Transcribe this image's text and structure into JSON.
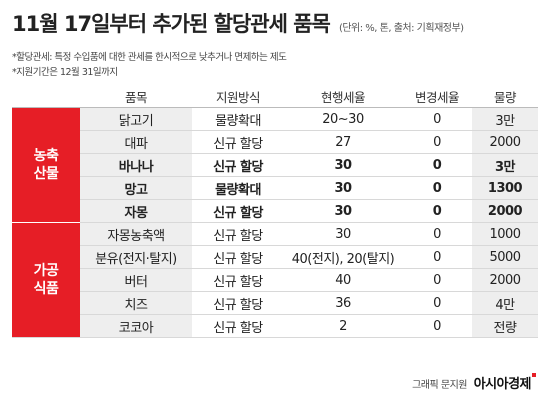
{
  "title": "11월 17일부터 추가된 할당관세 품목",
  "unit_note": "(단위: %, 톤, 출처: 기획재정부)",
  "notes": [
    "*할당관세: 특정 수입품에 대한 관세를 한시적으로 낮추거나 면제하는 제도",
    "*지원기간은 12월 31일까지"
  ],
  "headers": [
    "품목",
    "지원방식",
    "현행세율",
    "변경세율",
    "물량"
  ],
  "groups": [
    {
      "name": "농축\n산물",
      "rows": [
        {
          "item": "닭고기",
          "method": "물량확대",
          "current": "20~30",
          "changed": "0",
          "qty": "3만",
          "bold": false
        },
        {
          "item": "대파",
          "method": "신규 할당",
          "current": "27",
          "changed": "0",
          "qty": "2000",
          "bold": false
        },
        {
          "item": "바나나",
          "method": "신규 할당",
          "current": "30",
          "changed": "0",
          "qty": "3만",
          "bold": true
        },
        {
          "item": "망고",
          "method": "물량확대",
          "current": "30",
          "changed": "0",
          "qty": "1300",
          "bold": true
        },
        {
          "item": "자몽",
          "method": "신규 할당",
          "current": "30",
          "changed": "0",
          "qty": "2000",
          "bold": true
        }
      ]
    },
    {
      "name": "가공\n식품",
      "rows": [
        {
          "item": "자몽농축액",
          "method": "신규 할당",
          "current": "30",
          "changed": "0",
          "qty": "1000",
          "bold": false
        },
        {
          "item": "분유(전지·탈지)",
          "method": "신규 할당",
          "current": "40(전지), 20(탈지)",
          "changed": "0",
          "qty": "5000",
          "bold": false
        },
        {
          "item": "버터",
          "method": "신규 할당",
          "current": "40",
          "changed": "0",
          "qty": "2000",
          "bold": false
        },
        {
          "item": "치즈",
          "method": "신규 할당",
          "current": "36",
          "changed": "0",
          "qty": "4만",
          "bold": false
        },
        {
          "item": "코코아",
          "method": "신규 할당",
          "current": "2",
          "changed": "0",
          "qty": "전량",
          "bold": false
        }
      ]
    }
  ],
  "credit": {
    "text": "그래픽 문지원",
    "brand": "아시아경제"
  },
  "colors": {
    "accent": "#e61e26",
    "shade": "#eeeeee"
  }
}
